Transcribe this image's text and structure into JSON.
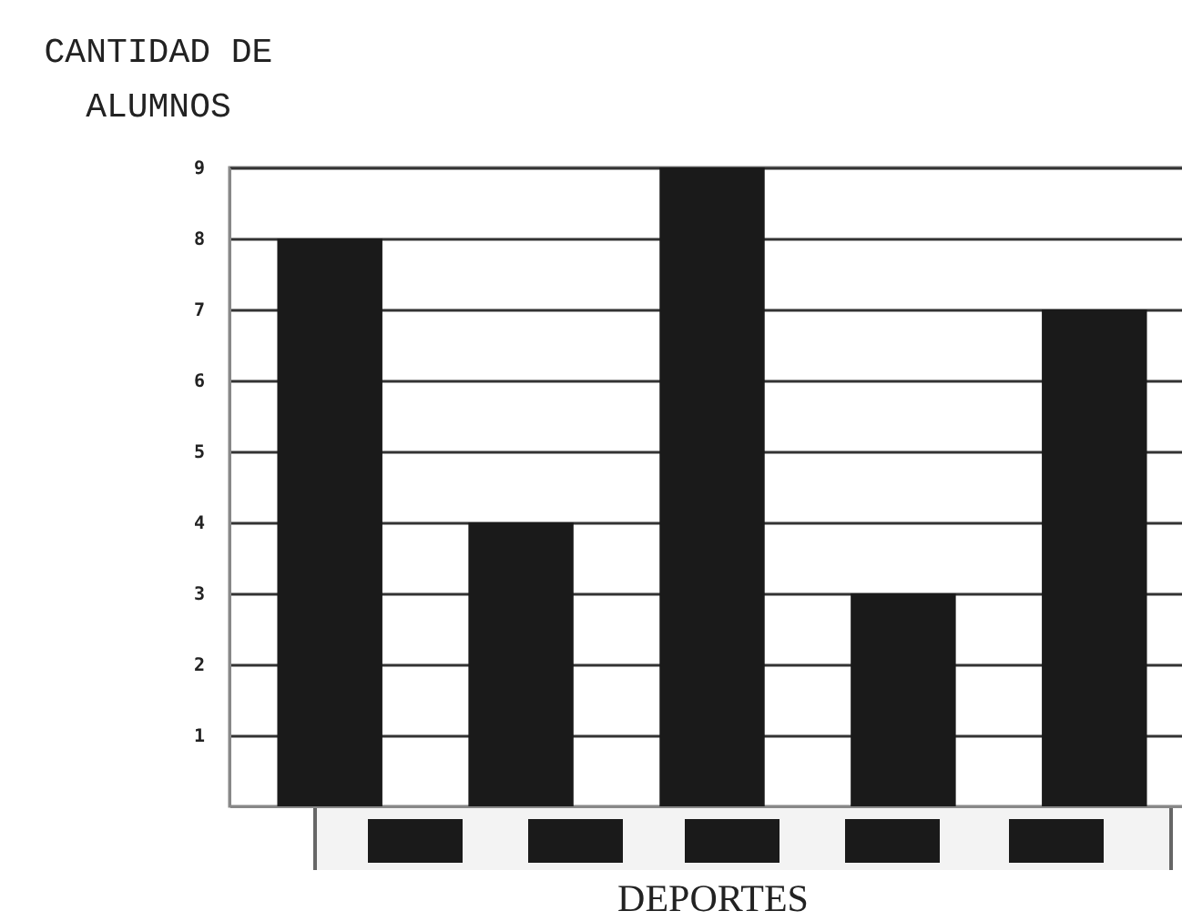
{
  "chart_data": {
    "type": "bar",
    "xlabel": "DEPORTES",
    "ylabel": "CANTIDAD DE ALUMNOS",
    "categories": [
      null,
      null,
      null,
      null,
      null
    ],
    "values": [
      8,
      4,
      9,
      3,
      7
    ],
    "color": "#1a1a1a",
    "ylim": [
      0,
      9
    ],
    "yticks": [
      1,
      2,
      3,
      4,
      5,
      6,
      7,
      8,
      9
    ],
    "grid": "y"
  }
}
